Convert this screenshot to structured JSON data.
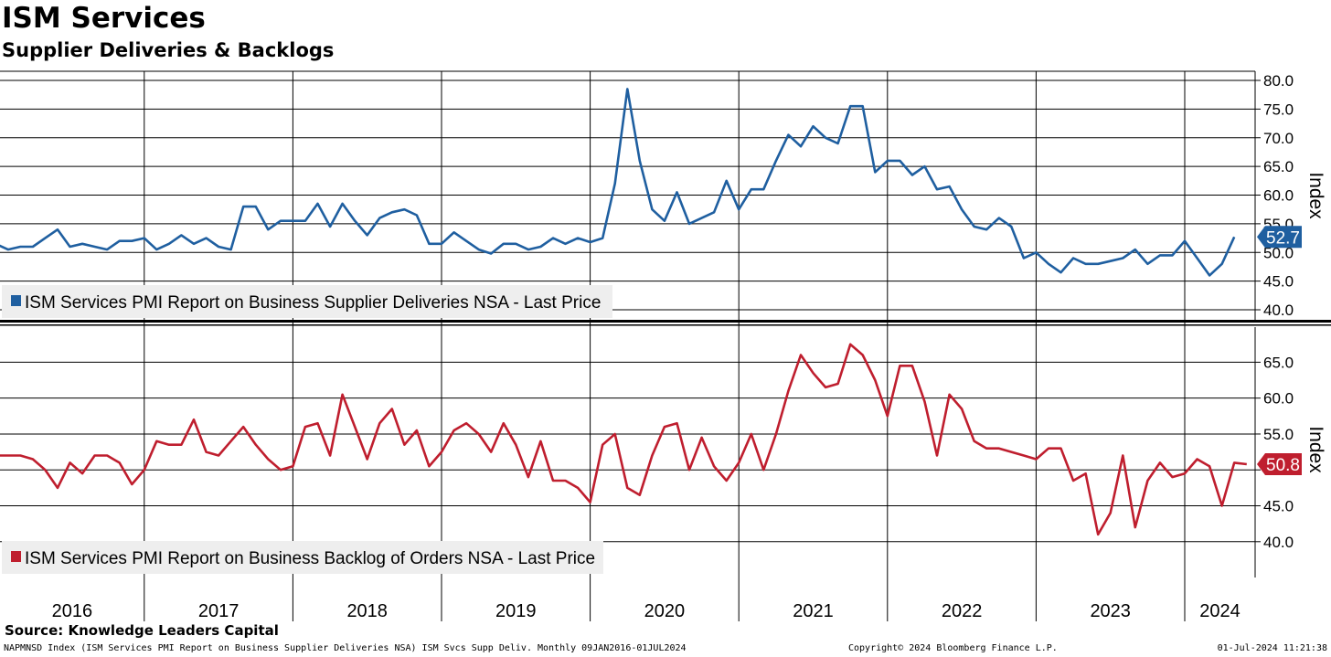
{
  "title": "ISM Services",
  "subtitle": "Supplier Deliveries & Backlogs",
  "source": "Source: Knowledge Leaders Capital",
  "footer": {
    "left": "NAPMNSD Index (ISM Services PMI Report on Business Supplier Deliveries NSA) ISM Svcs Supp Deliv.  Monthly 09JAN2016-01JUL2024",
    "middle": "Copyright© 2024 Bloomberg Finance L.P.",
    "right": "01-Jul-2024 11:21:38"
  },
  "colors": {
    "blue": "#1f5fa0",
    "red": "#bf1e2e",
    "legend_bg": "#eeeeee"
  },
  "years": [
    "2016",
    "2017",
    "2018",
    "2019",
    "2020",
    "2021",
    "2022",
    "2023",
    "2024"
  ],
  "chart_data": [
    {
      "type": "line",
      "panel": "top",
      "ylabel": "Index",
      "ylim": [
        38.5,
        81.5
      ],
      "yticks": [
        "80.0",
        "75.0",
        "70.0",
        "65.0",
        "60.0",
        "55.0",
        "50.0",
        "45.0",
        "40.0"
      ],
      "last_value_label": "52.7",
      "series": [
        {
          "name": "ISM Services PMI Report on Business Supplier Deliveries NSA - Last Price",
          "color": "#1f5fa0",
          "start": "2016-01",
          "values": [
            51.5,
            50.5,
            51.0,
            51.0,
            52.5,
            54.0,
            51.0,
            51.5,
            51.0,
            50.5,
            52.0,
            52.0,
            52.5,
            50.5,
            51.5,
            53.0,
            51.5,
            52.5,
            51.0,
            50.5,
            58.0,
            58.0,
            54.0,
            55.5,
            55.5,
            55.5,
            58.5,
            54.5,
            58.5,
            55.5,
            53.0,
            56.0,
            57.0,
            57.5,
            56.5,
            51.5,
            51.5,
            53.5,
            52.0,
            50.5,
            49.8,
            51.5,
            51.5,
            50.5,
            51.0,
            52.5,
            51.5,
            52.5,
            51.8,
            52.5,
            62.0,
            78.5,
            66.0,
            57.5,
            55.5,
            60.5,
            55.0,
            56.0,
            57.0,
            62.5,
            57.5,
            61.0,
            61.0,
            66.0,
            70.5,
            68.5,
            72.0,
            70.0,
            69.0,
            75.5,
            75.5,
            64.0,
            66.0,
            66.0,
            63.5,
            65.0,
            61.0,
            61.5,
            57.5,
            54.5,
            54.0,
            56.0,
            54.5,
            49.0,
            50.0,
            48.0,
            46.5,
            49.0,
            48.0,
            48.0,
            48.5,
            49.0,
            50.5,
            48.0,
            49.5,
            49.5,
            52.0,
            49.0,
            46.0,
            48.0,
            52.7
          ]
        }
      ]
    },
    {
      "type": "line",
      "panel": "bottom",
      "ylabel": "Index",
      "ylim": [
        36.0,
        69.0
      ],
      "yticks": [
        "65.0",
        "60.0",
        "55.0",
        "50.0",
        "45.0",
        "40.0"
      ],
      "last_value_label": "50.8",
      "series": [
        {
          "name": "ISM Services PMI Report on Business Backlog of Orders NSA - Last Price",
          "color": "#bf1e2e",
          "start": "2016-01",
          "values": [
            52.0,
            52.0,
            52.0,
            51.5,
            50.0,
            47.5,
            51.0,
            49.5,
            52.0,
            52.0,
            51.0,
            48.0,
            50.0,
            54.0,
            53.5,
            53.5,
            57.0,
            52.5,
            52.0,
            54.0,
            56.0,
            53.5,
            51.5,
            50.0,
            50.5,
            56.0,
            56.5,
            52.0,
            60.5,
            56.0,
            51.5,
            56.5,
            58.5,
            53.5,
            55.5,
            50.5,
            52.5,
            55.5,
            56.5,
            55.0,
            52.5,
            56.5,
            53.5,
            49.0,
            54.0,
            48.5,
            48.5,
            47.5,
            45.5,
            53.5,
            55.0,
            47.5,
            46.5,
            52.0,
            56.0,
            56.5,
            50.0,
            54.5,
            50.5,
            48.5,
            51.0,
            55.0,
            50.0,
            55.0,
            61.0,
            66.0,
            63.5,
            61.5,
            62.0,
            67.5,
            66.0,
            62.5,
            57.5,
            64.5,
            64.5,
            59.5,
            52.0,
            60.5,
            58.5,
            54.0,
            53.0,
            53.0,
            52.5,
            52.0,
            51.5,
            53.0,
            53.0,
            48.5,
            49.5,
            41.0,
            44.0,
            52.0,
            42.0,
            48.5,
            51.0,
            49.0,
            49.5,
            51.5,
            50.5,
            45.0,
            51.0,
            50.8
          ]
        }
      ]
    }
  ]
}
